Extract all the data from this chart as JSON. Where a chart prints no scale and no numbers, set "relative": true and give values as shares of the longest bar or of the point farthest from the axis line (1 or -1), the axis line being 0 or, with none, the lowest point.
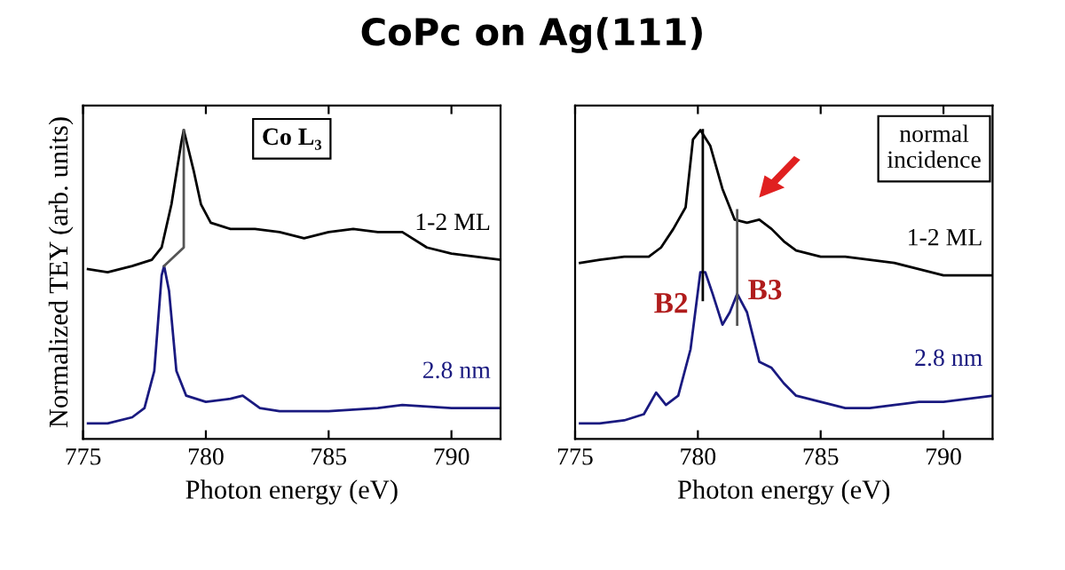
{
  "chart_data": [
    {
      "type": "line",
      "title": "CoPc on Ag(111)",
      "xlabel": "Photon energy (eV)",
      "ylabel": "Normalized TEY (arb. units)",
      "relative": true,
      "xlim": [
        775,
        792
      ],
      "xticks": [
        775,
        780,
        785,
        790
      ],
      "grid": false,
      "legend": false,
      "annotations": [
        "Co L₃"
      ],
      "series": [
        {
          "name": "1-2 ML",
          "color": "#000000",
          "x": [
            775.2,
            776,
            777,
            777.8,
            778.2,
            778.6,
            779.0,
            779.1,
            779.5,
            779.8,
            780.2,
            781,
            782,
            783,
            784,
            785,
            786,
            787,
            788,
            789,
            790,
            791,
            792
          ],
          "values": [
            0.55,
            0.54,
            0.56,
            0.58,
            0.62,
            0.76,
            0.96,
            1.0,
            0.87,
            0.76,
            0.7,
            0.68,
            0.68,
            0.67,
            0.65,
            0.67,
            0.68,
            0.67,
            0.67,
            0.62,
            0.6,
            0.59,
            0.58
          ]
        },
        {
          "name": "2.8 nm",
          "color": "#1a1a80",
          "x": [
            775.2,
            776,
            777,
            777.5,
            777.9,
            778.2,
            778.3,
            778.5,
            778.8,
            779.2,
            780,
            781,
            781.5,
            782.2,
            783,
            785,
            787,
            788,
            790,
            792
          ],
          "values": [
            0.05,
            0.05,
            0.07,
            0.1,
            0.22,
            0.53,
            0.56,
            0.48,
            0.22,
            0.14,
            0.12,
            0.13,
            0.14,
            0.1,
            0.09,
            0.09,
            0.1,
            0.11,
            0.1,
            0.1
          ]
        },
        {
          "color": "#555555",
          "x": [
            779.1,
            779.1,
            778.3
          ],
          "values": [
            1.0,
            0.62,
            0.56
          ]
        }
      ]
    },
    {
      "type": "line",
      "xlabel": "Photon energy (eV)",
      "relative": true,
      "xlim": [
        775,
        792
      ],
      "xticks": [
        775,
        780,
        785,
        790
      ],
      "grid": false,
      "legend": false,
      "annotations": [
        "normal incidence",
        "B2",
        "B3"
      ],
      "series": [
        {
          "name": "1-2 ML",
          "color": "#000000",
          "x": [
            775.2,
            776,
            777,
            778,
            778.5,
            779,
            779.5,
            779.8,
            780.1,
            780.5,
            781,
            781.5,
            782,
            782.5,
            783,
            783.5,
            784,
            785,
            786,
            787,
            788,
            789,
            790,
            791,
            792
          ],
          "values": [
            0.57,
            0.58,
            0.59,
            0.59,
            0.62,
            0.68,
            0.75,
            0.97,
            1.0,
            0.95,
            0.81,
            0.71,
            0.7,
            0.71,
            0.68,
            0.64,
            0.61,
            0.59,
            0.59,
            0.58,
            0.57,
            0.55,
            0.53,
            0.53,
            0.53
          ]
        },
        {
          "name": "2.8 nm",
          "color": "#1a1a80",
          "x": [
            775.2,
            776,
            777,
            777.8,
            778.3,
            778.7,
            779.2,
            779.7,
            780.1,
            780.3,
            780.6,
            781.0,
            781.3,
            781.6,
            782.0,
            782.5,
            783,
            783.5,
            784,
            785,
            786,
            787,
            788,
            789,
            790,
            792
          ],
          "values": [
            0.05,
            0.05,
            0.06,
            0.08,
            0.15,
            0.11,
            0.14,
            0.29,
            0.54,
            0.54,
            0.47,
            0.37,
            0.41,
            0.47,
            0.41,
            0.25,
            0.23,
            0.18,
            0.14,
            0.12,
            0.1,
            0.1,
            0.11,
            0.12,
            0.12,
            0.14
          ]
        },
        {
          "color": "#000000",
          "x": [
            780.2,
            780.2
          ],
          "values": [
            1.0,
            0.45
          ]
        },
        {
          "color": "#555555",
          "x": [
            781.6,
            781.6
          ],
          "values": [
            0.74,
            0.37
          ]
        }
      ]
    }
  ]
}
